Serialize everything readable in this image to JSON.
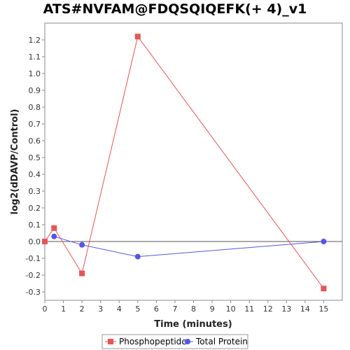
{
  "chart_data": {
    "type": "line",
    "title": "ATS#NVFAM@FDQSQIQEFK(+ 4)_v1",
    "xlabel": "Time (minutes)",
    "ylabel": "log2(dDAVP/Control)",
    "xlim": [
      0,
      16
    ],
    "ylim": [
      -0.35,
      1.3
    ],
    "xticks": [
      0,
      1,
      2,
      3,
      4,
      5,
      6,
      7,
      8,
      9,
      10,
      11,
      12,
      13,
      14,
      15
    ],
    "xtick_labels": [
      "0",
      "1",
      "2",
      "3",
      "4",
      "5",
      "6",
      "7",
      "8",
      "9",
      "10",
      "11",
      "12",
      "13",
      "14",
      "15"
    ],
    "yticks": [
      -0.3,
      -0.2,
      -0.1,
      0.0,
      0.1,
      0.2,
      0.3,
      0.4,
      0.5,
      0.6,
      0.7,
      0.8,
      0.9,
      1.0,
      1.1,
      1.2
    ],
    "ytick_labels": [
      "-0.3",
      "-0.2",
      "-0.1",
      "0.0",
      "0.1",
      "0.2",
      "0.3",
      "0.4",
      "0.5",
      "0.6",
      "0.7",
      "0.8",
      "0.9",
      "1.0",
      "1.1",
      "1.2"
    ],
    "grid": false,
    "legend_position": "bottom",
    "series": [
      {
        "name": "Phosphopeptide",
        "color": "#e85555",
        "marker": "square",
        "x": [
          0,
          0.5,
          2,
          5,
          15
        ],
        "y": [
          0.0,
          0.08,
          -0.19,
          1.22,
          -0.28
        ]
      },
      {
        "name": "Total Protein",
        "color": "#5555e8",
        "marker": "circle",
        "x": [
          0.5,
          2,
          5,
          15
        ],
        "y": [
          0.03,
          -0.02,
          -0.09,
          0.0
        ]
      }
    ]
  }
}
